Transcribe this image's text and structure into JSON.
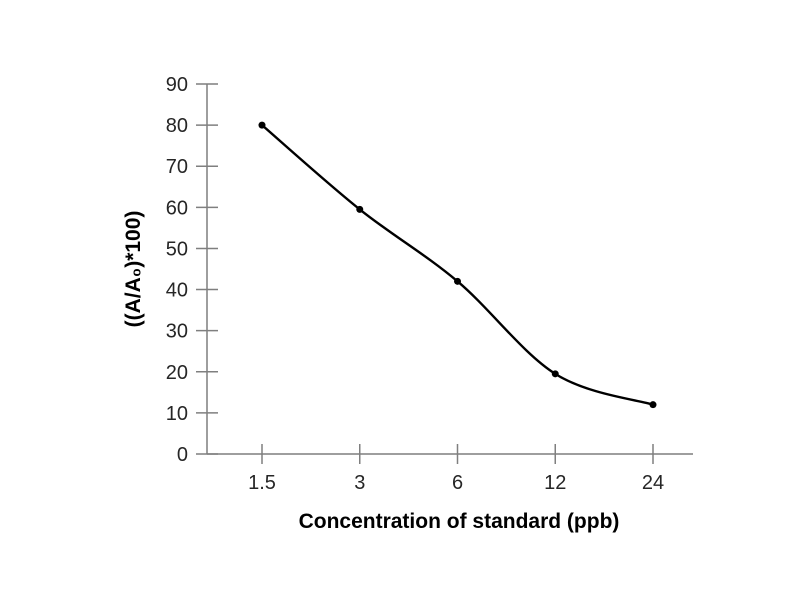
{
  "page": {
    "background": "#ffffff"
  },
  "chart_data": {
    "type": "line",
    "categories": [
      "1.5",
      "3",
      "6",
      "12",
      "24"
    ],
    "values": [
      80,
      59.5,
      42,
      19.5,
      12
    ],
    "title": "",
    "xlabel": "Concentration of standard (ppb)",
    "ylabel": "((A/A₀)*100)",
    "ylim": [
      0,
      90
    ],
    "y_ticks": [
      0,
      10,
      20,
      30,
      40,
      50,
      60,
      70,
      80,
      90
    ],
    "x_scale": "categorical",
    "grid": false,
    "legend": "none",
    "smooth": true,
    "marker": "filled-circle",
    "colors": {
      "line": "#000000",
      "marker": "#000000",
      "axis": "#7f7f7f",
      "tick_label": "#262626",
      "axis_title": "#000000",
      "background": "#ffffff"
    }
  }
}
